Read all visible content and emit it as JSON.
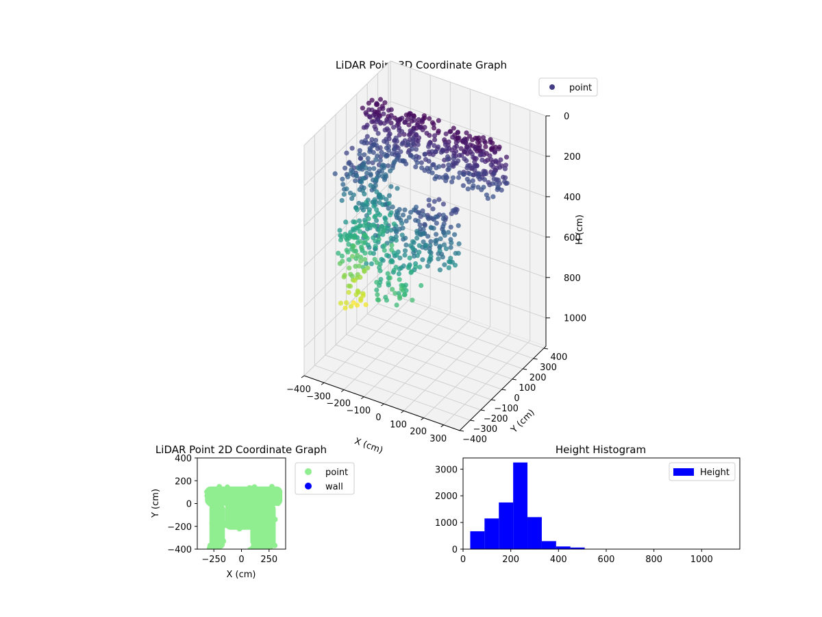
{
  "colors": {
    "point_3d_legend": "#433d84",
    "point_2d": "#90ee90",
    "wall_2d": "#0000ff",
    "histogram": "#0000ff",
    "pane": "#f2f2f2",
    "grid": "#d0d0d0"
  },
  "colormap": "viridis",
  "chart_data": [
    {
      "type": "scatter3d",
      "title": "LiDAR Point 3D Coordinate Graph",
      "xlabel": "X (cm)",
      "ylabel": "Y (cm)",
      "zlabel": "H (cm)",
      "xlim": [
        -400,
        380
      ],
      "ylim": [
        -400,
        420
      ],
      "zlim": [
        1140,
        0
      ],
      "xticks": [
        -400,
        -300,
        -200,
        -100,
        0,
        100,
        200,
        300
      ],
      "yticks": [
        -400,
        -300,
        -200,
        -100,
        0,
        100,
        200,
        300,
        400
      ],
      "zticks": [
        0,
        200,
        400,
        600,
        800,
        1000
      ],
      "legend": [
        {
          "name": "point",
          "color": "#433d84"
        }
      ],
      "legend_loc": "upper right",
      "grid": true,
      "color_by": "H",
      "clusters": [
        {
          "x": [
            -340,
            340
          ],
          "y": [
            40,
            150
          ],
          "h": [
            10,
            260
          ],
          "n": 420
        },
        {
          "x": [
            -380,
            -200
          ],
          "y": [
            -150,
            140
          ],
          "h": [
            200,
            700
          ],
          "n": 220
        },
        {
          "x": [
            -390,
            -300
          ],
          "y": [
            -100,
            60
          ],
          "h": [
            600,
            1000
          ],
          "n": 60
        },
        {
          "x": [
            -140,
            60
          ],
          "y": [
            -350,
            -120
          ],
          "h": [
            300,
            700
          ],
          "n": 130
        },
        {
          "x": [
            60,
            260
          ],
          "y": [
            -350,
            -150
          ],
          "h": [
            200,
            500
          ],
          "n": 110
        }
      ]
    },
    {
      "type": "scatter",
      "title": "LiDAR Point 2D Coordinate Graph",
      "xlabel": "X (cm)",
      "ylabel": "Y (cm)",
      "xlim": [
        -400,
        400
      ],
      "ylim": [
        -400,
        400
      ],
      "xticks": [
        -250,
        0,
        250
      ],
      "yticks": [
        -400,
        -200,
        0,
        200,
        400
      ],
      "legend": [
        {
          "name": "point",
          "color": "#90ee90"
        },
        {
          "name": "wall",
          "color": "#0000ff"
        }
      ],
      "legend_loc": "outside upper right",
      "shape": {
        "top_band": {
          "x": [
            -330,
            370
          ],
          "y": [
            -20,
            150
          ]
        },
        "left_leg": {
          "x": [
            -290,
            -150
          ],
          "y": [
            -400,
            0
          ]
        },
        "middle": {
          "x": [
            -150,
            120
          ],
          "y": [
            -230,
            0
          ]
        },
        "right_leg": {
          "x": [
            80,
            310
          ],
          "y": [
            -400,
            0
          ]
        }
      }
    },
    {
      "type": "bar",
      "title": "Height Histogram",
      "xlabel": "",
      "ylabel": "",
      "xlim": [
        0,
        1160
      ],
      "ylim": [
        0,
        3420
      ],
      "xticks": [
        0,
        200,
        400,
        600,
        800,
        1000
      ],
      "yticks": [
        0,
        1000,
        2000,
        3000
      ],
      "bin_edges": [
        30,
        90,
        150,
        210,
        270,
        330,
        390,
        450,
        510,
        570,
        630,
        690,
        750,
        810,
        870,
        930,
        990,
        1050,
        1110
      ],
      "values": [
        670,
        1150,
        1750,
        3250,
        1200,
        300,
        100,
        60,
        10,
        5,
        3,
        2,
        2,
        1,
        1,
        1,
        1,
        1
      ],
      "legend": [
        {
          "name": "Height",
          "color": "#0000ff"
        }
      ],
      "legend_loc": "upper right"
    }
  ]
}
